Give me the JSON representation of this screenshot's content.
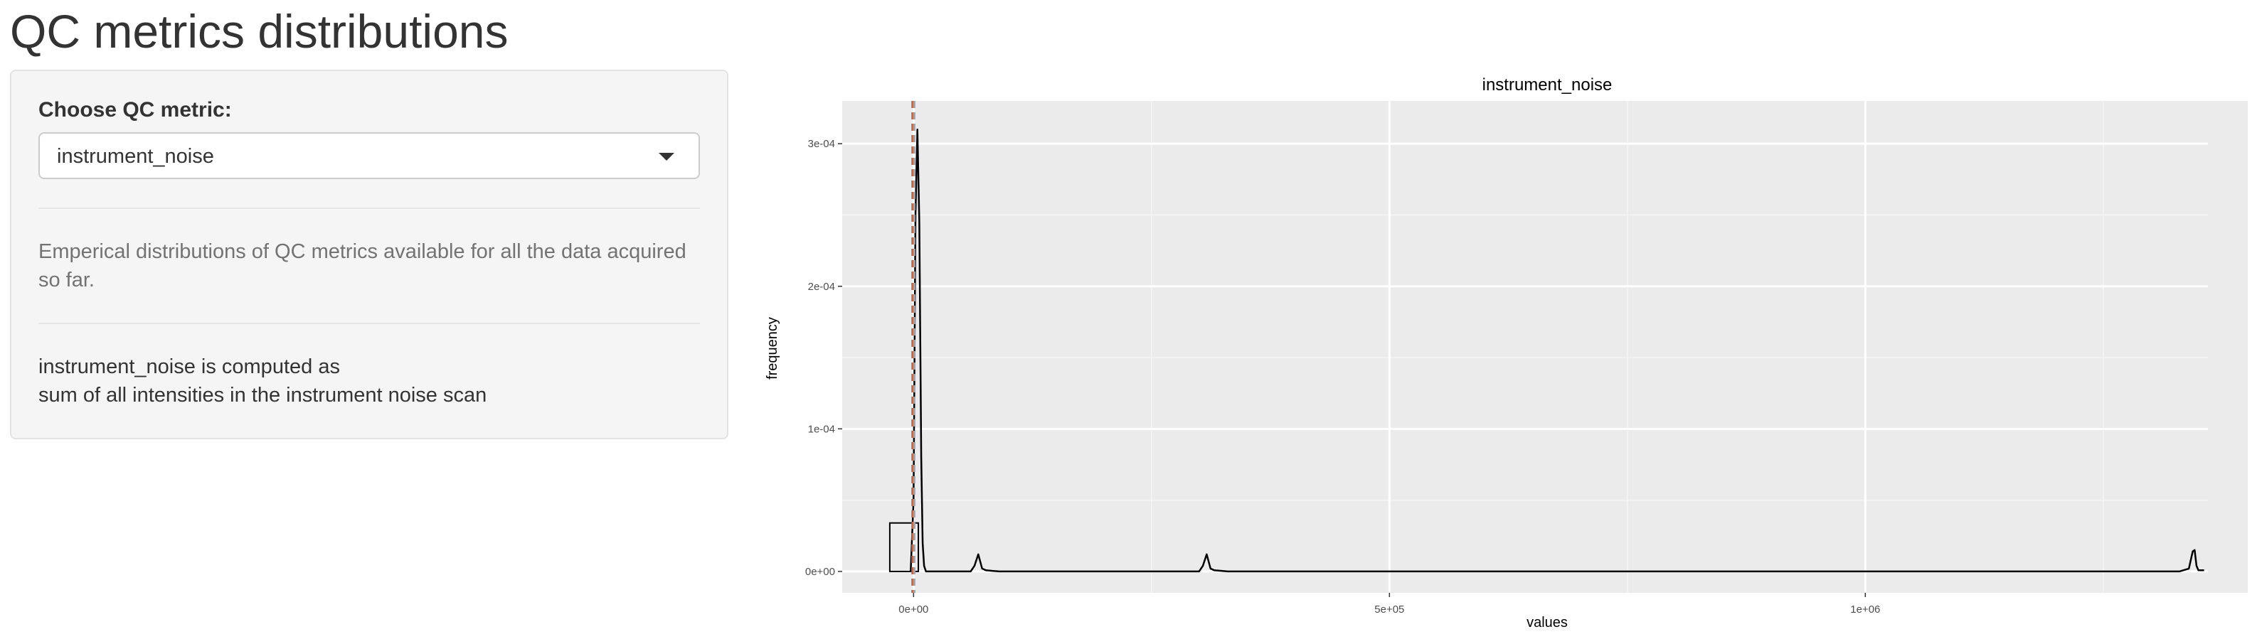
{
  "page": {
    "title": "QC metrics distributions"
  },
  "sidebar": {
    "select_label": "Choose QC metric:",
    "selected_metric": "instrument_noise",
    "help_text": "Emperical distributions of QC metrics available for all the data acquired so far.",
    "metric_desc_line1": "instrument_noise is computed as",
    "metric_desc_line2": "sum of all intensities in the instrument noise scan"
  },
  "colors": {
    "median_line": "#d95f2b",
    "mean_line": "#9aa6b2",
    "panel_bg": "#ebebeb"
  },
  "chart_data": {
    "type": "area",
    "title": "instrument_noise",
    "xlabel": "values",
    "ylabel": "frequency",
    "x_ticks": [
      {
        "value": 0,
        "label": "0e+00"
      },
      {
        "value": 500000,
        "label": "5e+05"
      },
      {
        "value": 1000000,
        "label": "1e+06"
      }
    ],
    "y_ticks": [
      {
        "value": 0,
        "label": "0e+00"
      },
      {
        "value": 0.0001,
        "label": "1e-04"
      },
      {
        "value": 0.0002,
        "label": "2e-04"
      },
      {
        "value": 0.0003,
        "label": "3e-04"
      }
    ],
    "xlim": [
      -75000,
      1360000
    ],
    "ylim": [
      -1.5e-05,
      0.00033
    ],
    "histogram": [
      {
        "x0": -25000,
        "x1": 5000,
        "y": 3.4e-05
      }
    ],
    "density": {
      "x": [
        -3000,
        0,
        2000,
        4000,
        6000,
        8000,
        9500,
        11000,
        13000,
        60000,
        64000,
        68000,
        72000,
        76000,
        90000,
        300000,
        304000,
        308000,
        312000,
        316000,
        330000,
        1330000,
        1340000,
        1344000,
        1346000,
        1348000,
        1350000,
        1356000
      ],
      "y": [
        0,
        5e-05,
        0.00025,
        0.00031,
        0.000245,
        8e-05,
        2e-05,
        4e-06,
        0,
        0,
        4e-06,
        1.2e-05,
        2e-06,
        8e-07,
        0,
        0,
        4e-06,
        1.2e-05,
        2e-06,
        8e-07,
        0,
        0,
        2e-06,
        1.4e-05,
        1.5e-05,
        4e-06,
        8e-07,
        8e-07
      ]
    },
    "vlines": [
      {
        "x": -1200,
        "kind": "median"
      },
      {
        "x": 800,
        "kind": "mean"
      }
    ]
  }
}
